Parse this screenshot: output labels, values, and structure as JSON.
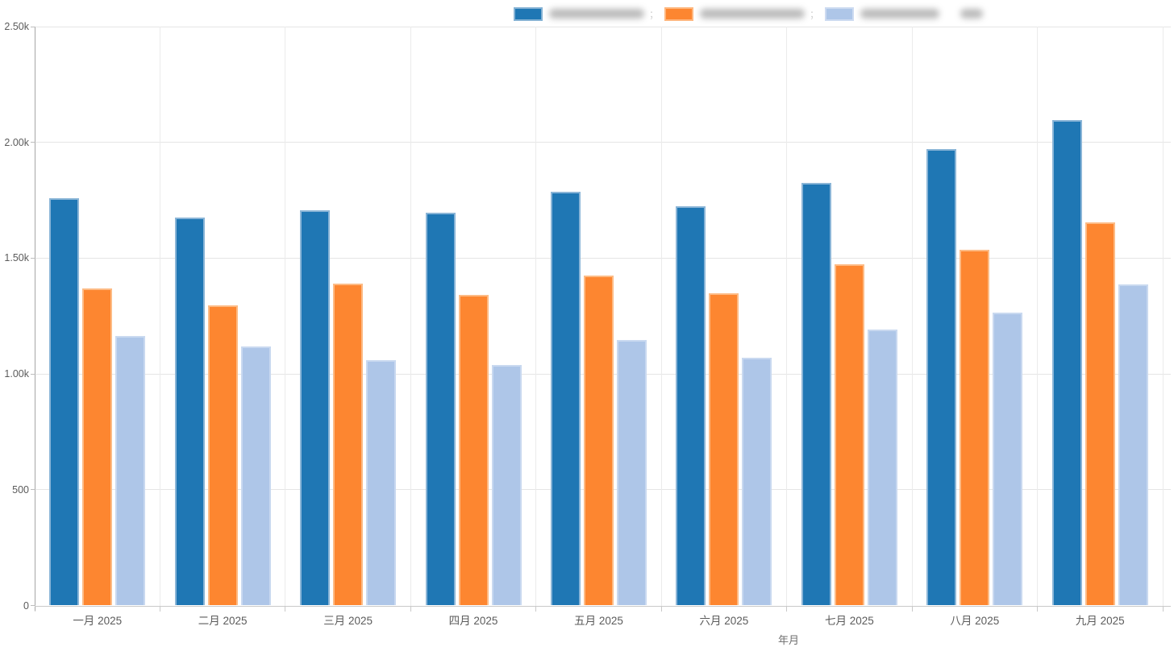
{
  "chart_data": {
    "type": "bar",
    "title": "",
    "xlabel": "年月",
    "ylabel": "",
    "categories": [
      "一月 2025",
      "二月 2025",
      "三月 2025",
      "四月 2025",
      "五月 2025",
      "六月 2025",
      "七月 2025",
      "八月 2025",
      "九月 2025"
    ],
    "series": [
      {
        "name": "",
        "label_blurred": true,
        "color": "#1f77b4",
        "border_color": "#8ab5d7",
        "values": [
          1760,
          1675,
          1705,
          1695,
          1785,
          1725,
          1825,
          1970,
          2095
        ]
      },
      {
        "name": "",
        "label_blurred": true,
        "color": "#fd8630",
        "border_color": "#fecironone",
        "values": [
          1370,
          1295,
          1390,
          1340,
          1425,
          1350,
          1475,
          1535,
          1655
        ]
      },
      {
        "name": "",
        "label_blurred": true,
        "color": "#aec6e8",
        "border_color": "#cddbf1",
        "values": [
          1165,
          1120,
          1060,
          1040,
          1145,
          1070,
          1190,
          1265,
          1385
        ]
      }
    ],
    "ylim": [
      0,
      2500
    ],
    "yticks": [
      {
        "value": 0,
        "label": "0"
      },
      {
        "value": 500,
        "label": "500"
      },
      {
        "value": 1000,
        "label": "1.00k"
      },
      {
        "value": 1500,
        "label": "1.50k"
      },
      {
        "value": 2000,
        "label": "2.00k"
      },
      {
        "value": 2500,
        "label": "2.50k"
      }
    ],
    "grid": true,
    "legend_position": "top-center"
  },
  "legend": {
    "items": [
      {
        "swatch_color": "#1f77b4",
        "swatch_border": "#85b2d4",
        "blur_segments": [
          118
        ],
        "separator": "；"
      },
      {
        "swatch_color": "#fd8630",
        "swatch_border": "#feb77f",
        "blur_segments": [
          130
        ],
        "separator": "；"
      },
      {
        "swatch_color": "#aec6e8",
        "swatch_border": "#cddbf1",
        "blur_segments": [
          98,
          28
        ],
        "separator": ""
      }
    ]
  }
}
